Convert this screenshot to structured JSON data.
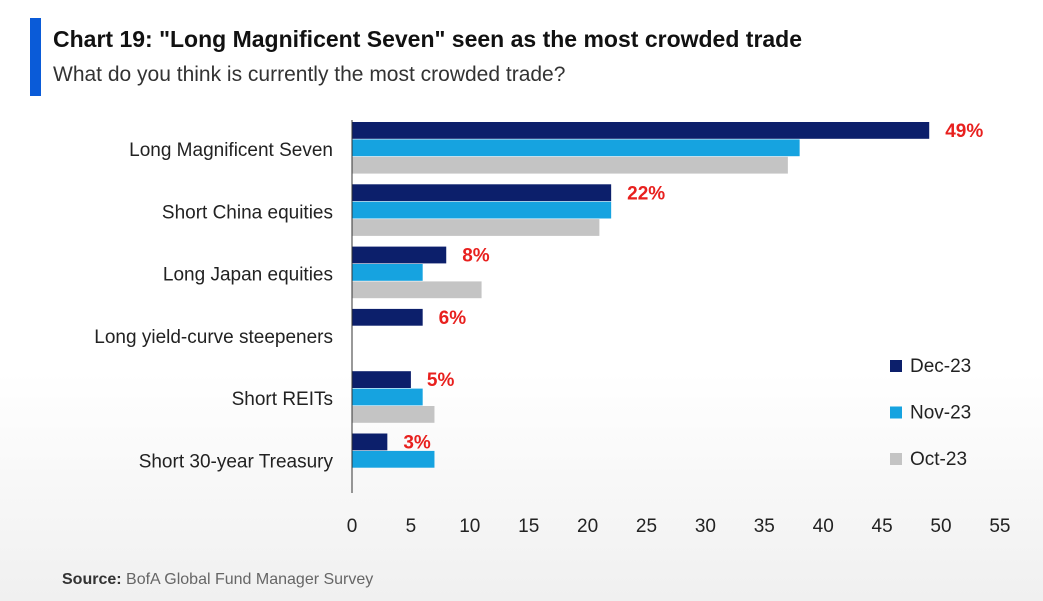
{
  "title": "Chart 19: \"Long Magnificent Seven\" seen as the most crowded trade",
  "subtitle": "What do you think is currently the most crowded trade?",
  "source_label": "Source:",
  "source_text": "BofA Global Fund Manager Survey",
  "colors": {
    "accent": "#0a5bd8",
    "dec": "#0c1f6b",
    "nov": "#16a3e0",
    "oct": "#c4c4c4",
    "value_label": "#e8201e"
  },
  "chart_data": {
    "type": "bar",
    "orientation": "horizontal",
    "categories": [
      "Long Magnificent Seven",
      "Short China equities",
      "Long Japan equities",
      "Long yield-curve steepeners",
      "Short REITs",
      "Short 30-year Treasury"
    ],
    "series": [
      {
        "name": "Dec-23",
        "values": [
          49,
          22,
          8,
          6,
          5,
          3
        ]
      },
      {
        "name": "Nov-23",
        "values": [
          38,
          22,
          6,
          null,
          6,
          7
        ]
      },
      {
        "name": "Oct-23",
        "values": [
          37,
          21,
          11,
          null,
          7,
          null
        ]
      }
    ],
    "value_labels": [
      "49%",
      "22%",
      "8%",
      "6%",
      "5%",
      "3%"
    ],
    "xlim": [
      0,
      55
    ],
    "xticks": [
      0,
      5,
      10,
      15,
      20,
      25,
      30,
      35,
      40,
      45,
      50,
      55
    ],
    "grid": false,
    "legend_position": "right"
  }
}
